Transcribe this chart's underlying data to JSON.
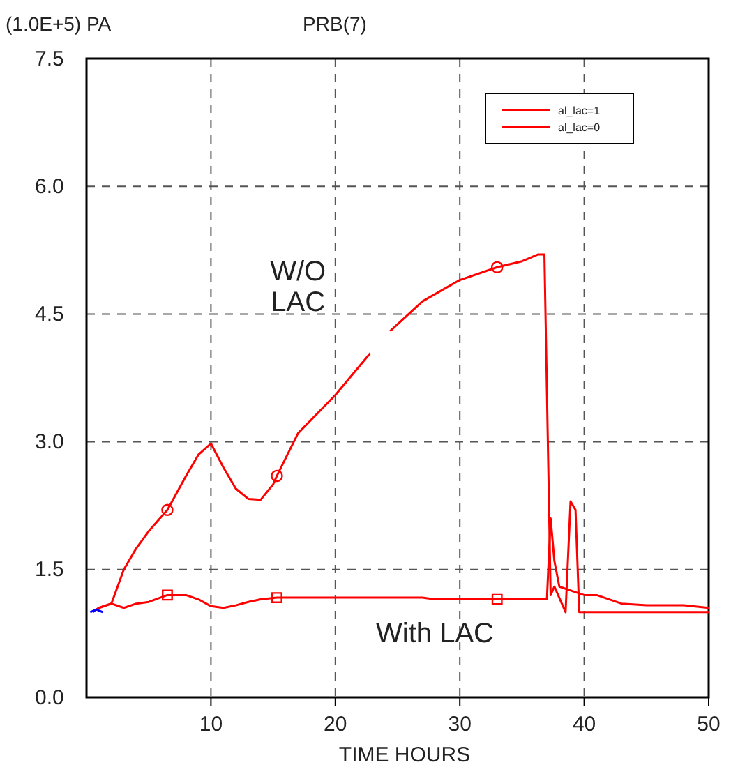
{
  "chart_data": {
    "type": "line",
    "title": "PRB(7)",
    "ylabel": "(1.0E+5) PA",
    "xlabel": "TIME HOURS",
    "xlim": [
      0,
      50
    ],
    "xticks": [
      10,
      20,
      30,
      40,
      50
    ],
    "ylim": [
      0,
      7.5
    ],
    "yticks": [
      {
        "value": 0,
        "label": "0.0"
      },
      {
        "value": 1.5,
        "label": "1.5"
      },
      {
        "value": 3,
        "label": "3.0"
      },
      {
        "value": 4.5,
        "label": "4.5"
      },
      {
        "value": 6,
        "label": "6.0"
      },
      {
        "value": 7.5,
        "label": "7.5"
      }
    ],
    "grid": true,
    "legend": "top right",
    "line_style": "solid",
    "series": [
      {
        "name": "al_lac=1",
        "color": "#ff0000",
        "x": [
          0.5,
          1,
          2,
          3,
          4,
          5,
          6.5,
          8,
          9,
          10,
          11,
          12,
          13,
          14,
          15.3,
          20,
          27,
          28,
          33,
          37,
          37.3,
          37.6,
          38,
          39,
          40,
          41,
          43,
          45,
          48,
          50
        ],
        "values": [
          1.0,
          1.05,
          1.1,
          1.05,
          1.1,
          1.12,
          1.2,
          1.2,
          1.15,
          1.07,
          1.05,
          1.08,
          1.12,
          1.15,
          1.17,
          1.17,
          1.17,
          1.15,
          1.15,
          1.15,
          2.1,
          1.6,
          1.3,
          1.25,
          1.2,
          1.2,
          1.1,
          1.08,
          1.08,
          1.05
        ]
      },
      {
        "name": "al_lac=0",
        "color": "#ff0000",
        "x": [
          0.5,
          1,
          2,
          3,
          4,
          5,
          6.5,
          8,
          9,
          10,
          11,
          12,
          13,
          14,
          15,
          15.3,
          17,
          20,
          22.8,
          null,
          24.4,
          27,
          30,
          33,
          35,
          36.3,
          36.8,
          37.3,
          37.6,
          38.5,
          38.9,
          39.3,
          39.6,
          42,
          50
        ],
        "values": [
          1.0,
          1.05,
          1.1,
          1.5,
          1.75,
          1.95,
          2.2,
          2.6,
          2.85,
          2.98,
          2.7,
          2.45,
          2.33,
          2.32,
          2.5,
          2.6,
          3.1,
          3.55,
          4.04,
          null,
          4.3,
          4.65,
          4.9,
          5.05,
          5.12,
          5.2,
          5.2,
          1.2,
          1.3,
          1.0,
          2.3,
          2.2,
          1.0,
          1.0,
          1.0
        ]
      },
      {
        "color": "#0000ff",
        "x": [
          0.3,
          0.8,
          1.3
        ],
        "values": [
          1.0,
          1.03,
          1.0
        ]
      },
      {
        "color": "#ff0000",
        "type": "scatter",
        "marker": "square",
        "x": [
          6.5,
          15.3,
          33
        ],
        "values": [
          1.2,
          1.17,
          1.15
        ]
      },
      {
        "color": "#ff0000",
        "type": "scatter",
        "marker": "circle",
        "x": [
          6.5,
          15.3,
          33
        ],
        "values": [
          2.2,
          2.6,
          5.05
        ]
      }
    ],
    "annotations": [
      "W/O LAC",
      "With LAC"
    ]
  }
}
